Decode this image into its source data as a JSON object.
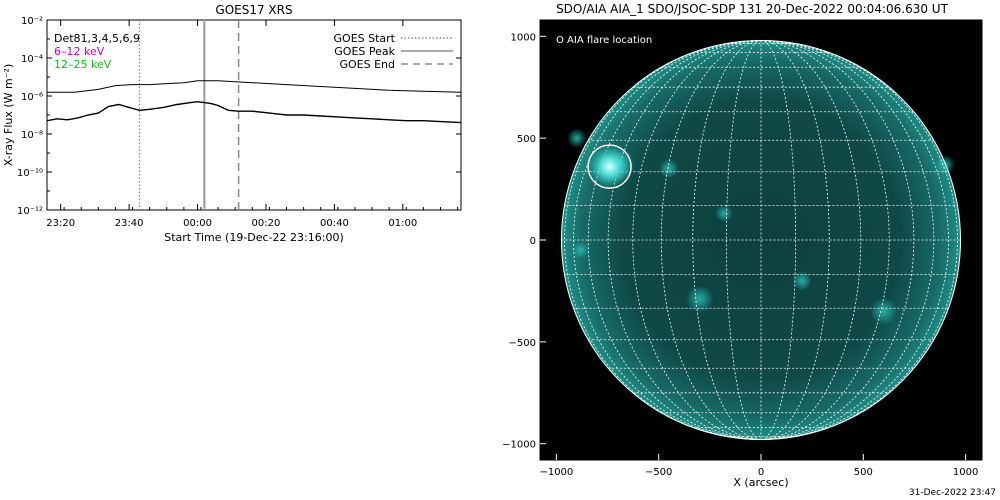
{
  "left_panel": {
    "title": "GOES17 XRS",
    "ylabel": "X-ray Flux (W m⁻²)",
    "xlabel": "Start Time (19-Dec-22 23:16:00)",
    "detector_label": "Det81,3,4,5,6,9",
    "band_labels": [
      {
        "text": "6–12 keV",
        "color": "#cc00cc"
      },
      {
        "text": "12–25 keV",
        "color": "#00cc00"
      }
    ],
    "legend": [
      {
        "label": "GOES Start",
        "style": "dotted"
      },
      {
        "label": "GOES Peak",
        "style": "solid"
      },
      {
        "label": "GOES End",
        "style": "dashed"
      }
    ]
  },
  "right_panel": {
    "title": "SDO/AIA AIA_1 SDO/JSOC-SDP 131 20-Dec-2022 00:04:06.630 UT",
    "xlabel": "X (arcsec)",
    "legend_label": "O AIA flare location",
    "accent_color": "#1fc8c0"
  },
  "footer_timestamp": "31-Dec-2022 23:47",
  "chart_data": [
    {
      "type": "line",
      "title": "GOES17 XRS",
      "xlabel": "Start Time (19-Dec-22 23:16:00)",
      "ylabel": "X-ray Flux (W m⁻²)",
      "yscale": "log",
      "x_unit": "minutes since 23:16:00",
      "xlim": [
        0,
        121
      ],
      "ylim_exponent": [
        -12,
        -2
      ],
      "x_ticks": [
        {
          "value": 4,
          "label": "23:20"
        },
        {
          "value": 24,
          "label": "23:40"
        },
        {
          "value": 44,
          "label": "00:00"
        },
        {
          "value": 64,
          "label": "00:20"
        },
        {
          "value": 84,
          "label": "00:40"
        },
        {
          "value": 104,
          "label": "01:00"
        }
      ],
      "y_ticks": [
        {
          "exp": -2,
          "label": "10⁻²"
        },
        {
          "exp": -4,
          "label": "10⁻⁴"
        },
        {
          "exp": -6,
          "label": "10⁻⁶"
        },
        {
          "exp": -8,
          "label": "10⁻⁸"
        },
        {
          "exp": -10,
          "label": "10⁻¹⁰"
        },
        {
          "exp": -12,
          "label": "10⁻¹²"
        }
      ],
      "series": [
        {
          "color": "#000000",
          "x": [
            0,
            8,
            15,
            20,
            25,
            30,
            35,
            40,
            44,
            46,
            50,
            55,
            60,
            70,
            80,
            90,
            100,
            110,
            121
          ],
          "log_flux": [
            -5.8,
            -5.8,
            -5.65,
            -5.45,
            -5.4,
            -5.4,
            -5.35,
            -5.3,
            -5.2,
            -5.2,
            -5.2,
            -5.25,
            -5.3,
            -5.4,
            -5.5,
            -5.6,
            -5.7,
            -5.75,
            -5.8
          ]
        },
        {
          "color": "#000000",
          "x": [
            0,
            3,
            6,
            9,
            12,
            15,
            18,
            21,
            24,
            27,
            30,
            34,
            38,
            42,
            44,
            46,
            48,
            50,
            53,
            56,
            60,
            65,
            70,
            75,
            80,
            85,
            90,
            95,
            100,
            105,
            110,
            115,
            121
          ],
          "log_flux": [
            -7.3,
            -7.2,
            -7.25,
            -7.15,
            -7.0,
            -6.9,
            -6.55,
            -6.45,
            -6.6,
            -6.75,
            -6.7,
            -6.6,
            -6.45,
            -6.35,
            -6.3,
            -6.35,
            -6.4,
            -6.5,
            -6.75,
            -6.8,
            -6.8,
            -6.9,
            -7.0,
            -7.0,
            -7.05,
            -7.1,
            -7.15,
            -7.2,
            -7.25,
            -7.3,
            -7.3,
            -7.35,
            -7.4
          ]
        }
      ],
      "markers": [
        {
          "name": "GOES Start",
          "x": 27,
          "style": "dotted"
        },
        {
          "name": "GOES Peak",
          "x": 46,
          "style": "solid"
        },
        {
          "name": "GOES End",
          "x": 56,
          "style": "dashed"
        }
      ]
    },
    {
      "type": "image",
      "title": "SDO/AIA AIA_1 SDO/JSOC-SDP 131 20-Dec-2022 00:04:06.630 UT",
      "xlabel": "X (arcsec)",
      "ylabel": "",
      "xlim": [
        -1080,
        1080
      ],
      "ylim": [
        -1080,
        1080
      ],
      "x_ticks": [
        {
          "value": -1000,
          "label": "−1000"
        },
        {
          "value": -500,
          "label": "−500"
        },
        {
          "value": 0,
          "label": "0"
        },
        {
          "value": 500,
          "label": "500"
        },
        {
          "value": 1000,
          "label": "1000"
        }
      ],
      "y_ticks": [
        {
          "value": 1000,
          "label": "1000"
        },
        {
          "value": 500,
          "label": "500"
        },
        {
          "value": 0,
          "label": "0"
        },
        {
          "value": -500,
          "label": "−500"
        },
        {
          "value": -1000,
          "label": "−1000"
        }
      ],
      "solar_radius_arcsec": 975,
      "flare_location": {
        "x": -740,
        "y": 360,
        "radius": 105
      },
      "grid_spacing_deg": 10
    }
  ]
}
